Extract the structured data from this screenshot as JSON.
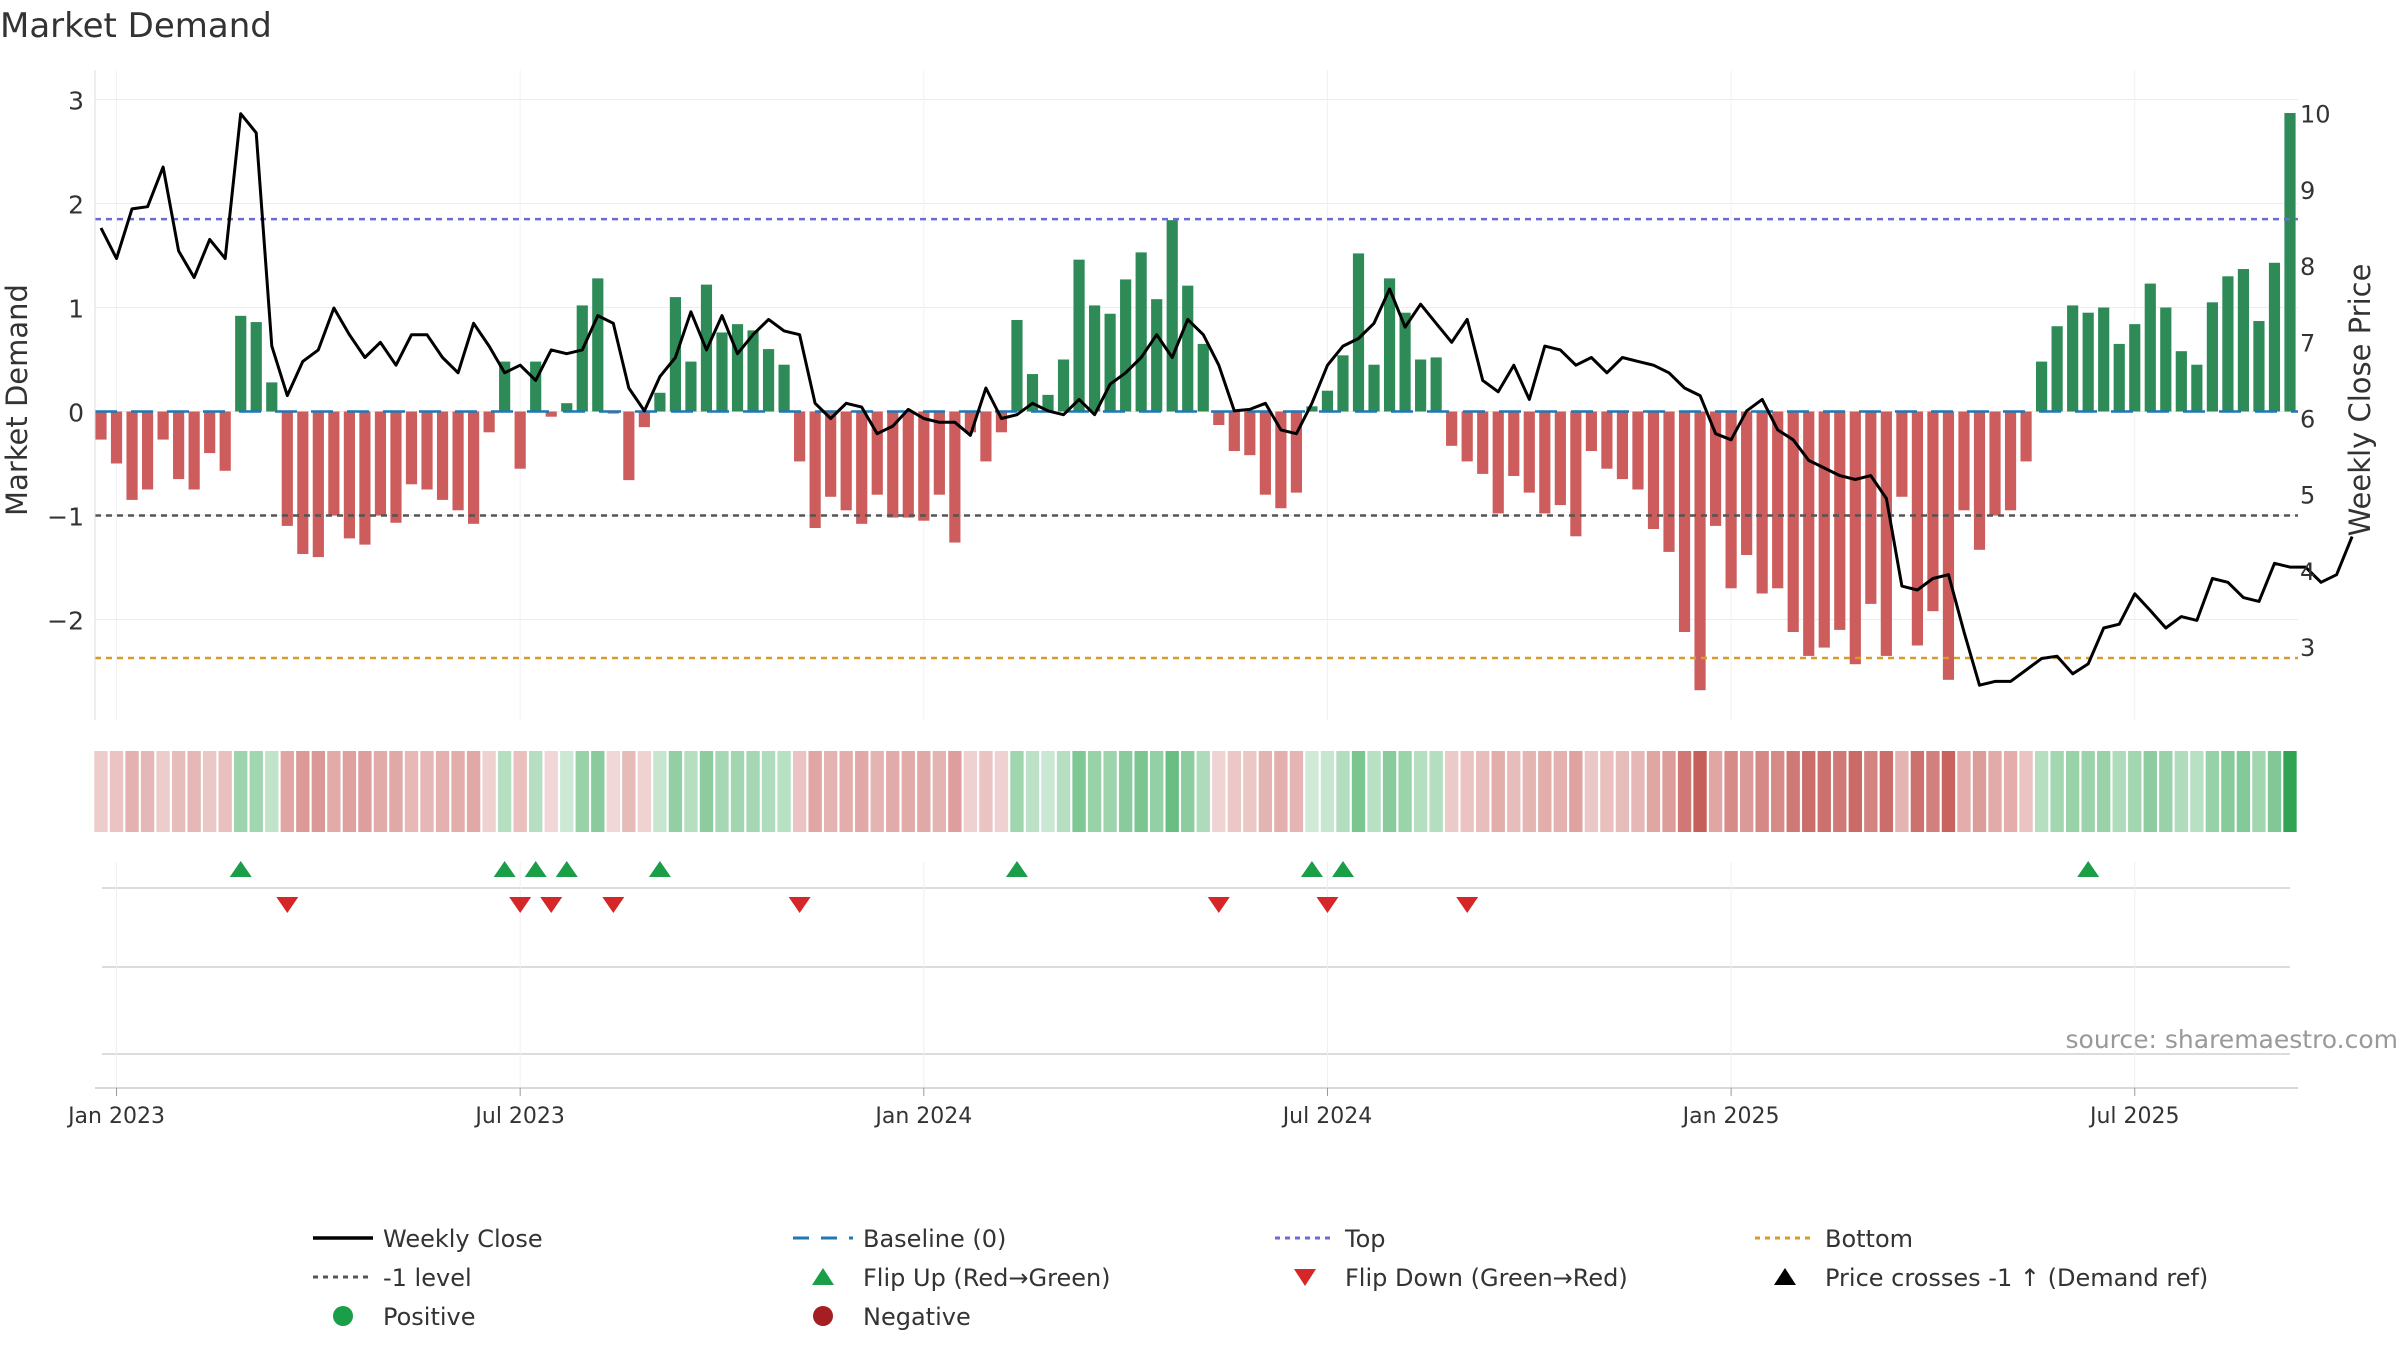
{
  "chart_data": {
    "type": "bar",
    "title": "Market Demand",
    "ylabel": "Market Demand",
    "y2label": "Weekly Close Price",
    "ylim": [
      -3,
      3.1
    ],
    "y2lim": [
      2,
      10.1
    ],
    "y_ticks": [
      {
        "v": 3,
        "label": "3"
      },
      {
        "v": 2,
        "label": "2"
      },
      {
        "v": 1,
        "label": "1"
      },
      {
        "v": 0,
        "label": "0"
      },
      {
        "v": -1,
        "label": "−1"
      },
      {
        "v": -2,
        "label": "−2"
      }
    ],
    "y2_ticks": [
      3,
      4,
      5,
      6,
      7,
      8,
      9,
      10
    ],
    "x_ticks": [
      {
        "label": "Jan 2023",
        "week": 1
      },
      {
        "label": "Jul 2023",
        "week": 27
      },
      {
        "label": "Jan 2024",
        "week": 53
      },
      {
        "label": "Jul 2024",
        "week": 79
      },
      {
        "label": "Jan 2025",
        "week": 105
      },
      {
        "label": "Jul 2025",
        "week": 131
      }
    ],
    "reference_lines": {
      "top": 1.85,
      "minus_one": -1,
      "bottom": -2.37,
      "baseline": 0
    },
    "demand": [
      -0.27,
      -0.5,
      -0.85,
      -0.75,
      -0.27,
      -0.65,
      -0.75,
      -0.4,
      -0.57,
      0.92,
      0.86,
      0.28,
      -1.1,
      -1.37,
      -1.4,
      -1.0,
      -1.22,
      -1.28,
      -1.0,
      -1.07,
      -0.7,
      -0.75,
      -0.85,
      -0.95,
      -1.08,
      -0.2,
      0.48,
      -0.55,
      0.48,
      -0.05,
      0.08,
      1.02,
      1.28,
      -0.02,
      -0.66,
      -0.15,
      0.18,
      1.1,
      0.48,
      1.22,
      0.76,
      0.84,
      0.78,
      0.6,
      0.45,
      -0.48,
      -1.12,
      -0.82,
      -0.95,
      -1.08,
      -0.8,
      -1.02,
      -1.02,
      -1.05,
      -0.8,
      -1.26,
      -0.2,
      -0.48,
      -0.2,
      0.88,
      0.36,
      0.16,
      0.5,
      1.46,
      1.02,
      0.94,
      1.27,
      1.53,
      1.08,
      1.84,
      1.21,
      0.65,
      -0.13,
      -0.38,
      -0.42,
      -0.8,
      -0.93,
      -0.78,
      0.05,
      0.2,
      0.54,
      1.52,
      0.45,
      1.28,
      0.95,
      0.5,
      0.52,
      -0.33,
      -0.48,
      -0.6,
      -0.98,
      -0.62,
      -0.78,
      -0.98,
      -0.9,
      -1.2,
      -0.38,
      -0.55,
      -0.65,
      -0.75,
      -1.13,
      -1.35,
      -2.12,
      -2.68,
      -1.1,
      -1.7,
      -1.38,
      -1.75,
      -1.7,
      -2.12,
      -2.35,
      -2.27,
      -2.1,
      -2.43,
      -1.85,
      -2.35,
      -0.82,
      -2.25,
      -1.92,
      -2.58,
      -0.95,
      -1.33,
      -1.0,
      -0.95,
      -0.48,
      0.48,
      0.82,
      1.02,
      0.95,
      1.0,
      0.65,
      0.84,
      1.23,
      1.0,
      0.58,
      0.45,
      1.05,
      1.3,
      1.37,
      0.87,
      1.43,
      2.87
    ],
    "weekly_close": [
      8.5,
      8.1,
      8.75,
      8.78,
      9.3,
      8.2,
      7.85,
      8.35,
      8.1,
      10.0,
      9.75,
      6.95,
      6.3,
      6.75,
      6.9,
      7.45,
      7.1,
      6.8,
      7.0,
      6.7,
      7.1,
      7.1,
      6.8,
      6.6,
      7.25,
      6.95,
      6.6,
      6.7,
      6.5,
      6.9,
      6.85,
      6.9,
      7.35,
      7.25,
      6.4,
      6.1,
      6.55,
      6.8,
      7.4,
      6.9,
      7.35,
      6.85,
      7.1,
      7.3,
      7.15,
      7.1,
      6.2,
      6.0,
      6.2,
      6.15,
      5.8,
      5.9,
      6.12,
      6.0,
      5.95,
      5.95,
      5.78,
      6.4,
      6.0,
      6.05,
      6.2,
      6.1,
      6.05,
      6.25,
      6.05,
      6.45,
      6.6,
      6.8,
      7.1,
      6.8,
      7.3,
      7.1,
      6.7,
      6.1,
      6.12,
      6.2,
      5.85,
      5.8,
      6.2,
      6.7,
      6.95,
      7.05,
      7.25,
      7.7,
      7.2,
      7.5,
      7.25,
      7.0,
      7.3,
      6.5,
      6.35,
      6.7,
      6.25,
      6.95,
      6.9,
      6.7,
      6.8,
      6.6,
      6.8,
      6.75,
      6.7,
      6.6,
      6.4,
      6.3,
      5.8,
      5.72,
      6.1,
      6.25,
      5.85,
      5.72,
      5.45,
      5.35,
      5.25,
      5.2,
      5.25,
      4.95,
      3.8,
      3.75,
      3.9,
      3.95,
      3.2,
      2.5,
      2.55,
      2.55,
      2.7,
      2.85,
      2.88,
      2.65,
      2.78,
      3.25,
      3.3,
      3.7,
      3.48,
      3.25,
      3.4,
      3.35,
      3.9,
      3.85,
      3.65,
      3.6,
      4.1,
      4.05,
      4.05,
      3.85,
      3.95,
      4.45
    ],
    "flip_up_weeks": [
      9,
      26,
      28,
      30,
      36,
      59,
      78,
      80,
      128
    ],
    "flip_down_weeks": [
      12,
      27,
      29,
      33,
      45,
      72,
      79,
      88
    ],
    "source": "source: sharemaestro.com",
    "legend_position": "bottom",
    "legend": [
      {
        "label": "Weekly Close",
        "kind": "line",
        "color": "#000000"
      },
      {
        "label": "Baseline (0)",
        "kind": "dash",
        "color": "#1f77b4"
      },
      {
        "label": "Top",
        "kind": "dot",
        "color": "#6b6bd6"
      },
      {
        "label": "Bottom",
        "kind": "dot",
        "color": "#d69b2a"
      },
      {
        "label": "-1 level",
        "kind": "dot",
        "color": "#555555"
      },
      {
        "label": "Flip Up (Red→Green)",
        "kind": "tri-up",
        "color": "#1a9e48"
      },
      {
        "label": "Flip Down (Green→Red)",
        "kind": "tri-down",
        "color": "#d62728"
      },
      {
        "label": "Price crosses -1 ↑ (Demand ref)",
        "kind": "tri-up",
        "color": "#000000"
      },
      {
        "label": "Positive",
        "kind": "circle",
        "color": "#1a9e48"
      },
      {
        "label": "Negative",
        "kind": "circle",
        "color": "#a41e22"
      }
    ],
    "colors": {
      "positive": "#2e8b57",
      "negative": "#cd5c5c",
      "heat_pos": "#2ea350",
      "heat_neg": "#c25450"
    }
  }
}
